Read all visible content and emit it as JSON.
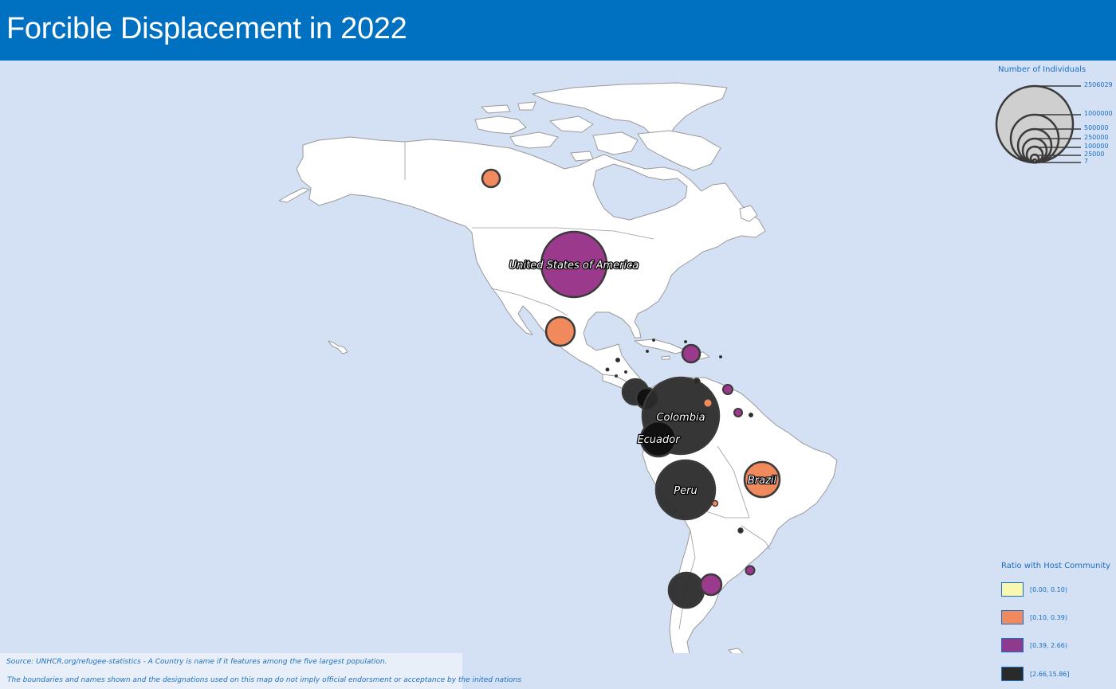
{
  "title": "Forcible Displacement in 2022",
  "size_legend": {
    "title": "Number of Individuals",
    "ticks": [
      "2506029",
      "1000000",
      "500000",
      "250000",
      "100000",
      "25000",
      "7"
    ]
  },
  "ratio_legend": {
    "title": "Ratio with Host Community",
    "classes": [
      {
        "label": "[0.00, 0.10)",
        "color": "#f8f8b0"
      },
      {
        "label": "[0.10, 0.39)",
        "color": "#f08a5d"
      },
      {
        "label": "[0.39, 2.66)",
        "color": "#8e3b8e"
      },
      {
        "label": "[2.66,15.86]",
        "color": "#2a2a2a"
      }
    ]
  },
  "labels": {
    "usa": "United States of America",
    "colombia": "Colombia",
    "ecuador": "Ecuador",
    "peru": "Peru",
    "brazil": "Brazil"
  },
  "footer": {
    "source": "Source: UNHCR.org/refugee-statistics - A Country is name if it features among the five largest population.",
    "disclaimer": "The boundaries and names shown and the designations used on this map do not imply official endorsment or acceptance by the inited nations"
  }
}
